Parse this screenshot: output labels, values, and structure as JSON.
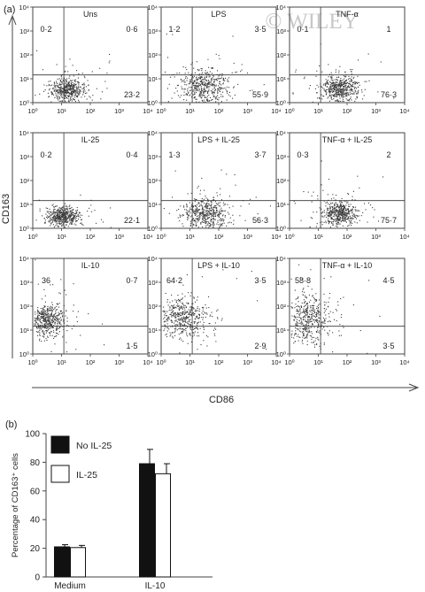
{
  "watermark": "© WILEY",
  "panel_a": {
    "label": "(a)",
    "y_axis_label": "CD163",
    "x_axis_label": "CD86",
    "tick_labels": [
      "10⁰",
      "10¹",
      "10²",
      "10³",
      "10⁴"
    ],
    "colors": {
      "dots": "#3a3a3a",
      "axes": "#444444"
    }
  },
  "panel_b": {
    "label": "(b)"
  },
  "chart_data": [
    {
      "type": "scatter",
      "panel": "a",
      "x_axis": "CD86",
      "y_axis": "CD163",
      "scale": "log",
      "xlim": [
        1,
        10000
      ],
      "ylim": [
        1,
        10000
      ],
      "plots": [
        {
          "title": "Uns",
          "quadrants": {
            "UL": "0·2",
            "UR": "0·6",
            "LR": "23·2"
          }
        },
        {
          "title": "LPS",
          "quadrants": {
            "UL": "1·2",
            "UR": "3·5",
            "LR": "55·9"
          }
        },
        {
          "title": "TNF-α",
          "quadrants": {
            "UL": "0·1",
            "UR": "1",
            "LR": "76·3"
          }
        },
        {
          "title": "IL-25",
          "quadrants": {
            "UL": "0·2",
            "UR": "0·4",
            "LR": "22·1"
          }
        },
        {
          "title": "LPS + IL-25",
          "quadrants": {
            "UL": "1·3",
            "UR": "3·7",
            "LR": "56·3"
          }
        },
        {
          "title": "TNF-α + IL-25",
          "quadrants": {
            "UL": "0·3",
            "UR": "2",
            "LR": "75·7"
          }
        },
        {
          "title": "IL-10",
          "quadrants": {
            "UL": "36",
            "UR": "0·7",
            "LR": "1·5"
          }
        },
        {
          "title": "LPS + IL-10",
          "quadrants": {
            "UL": "64·2",
            "UR": "3·5",
            "LR": "2·9"
          }
        },
        {
          "title": "TNF-α + IL-10",
          "quadrants": {
            "UL": "58·8",
            "UR": "4·5",
            "LR": "3·5"
          }
        }
      ]
    },
    {
      "type": "bar",
      "panel": "b",
      "categories": [
        "Medium",
        "IL-10"
      ],
      "series": [
        {
          "name": "No IL-25",
          "values": [
            21,
            79
          ],
          "errors": [
            1.5,
            10
          ],
          "color": "#111111"
        },
        {
          "name": "IL-25",
          "values": [
            20.5,
            72
          ],
          "errors": [
            1.5,
            7
          ],
          "color": "#ffffff"
        }
      ],
      "ylabel": "Percentage of CD163⁺ cells",
      "ylim": [
        0,
        100
      ],
      "yticks": [
        "0",
        "20",
        "40",
        "60",
        "80",
        "100"
      ],
      "legend": "top-left"
    }
  ]
}
